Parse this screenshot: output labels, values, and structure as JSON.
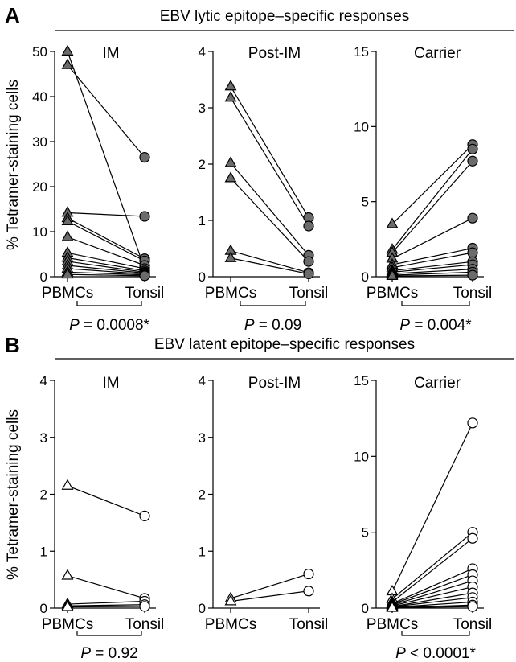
{
  "figure": {
    "panels": [
      {
        "letter": "A",
        "title": "EBV lytic epitope–specific responses",
        "ylabel": "% Tetramer-staining cells"
      },
      {
        "letter": "B",
        "title": "EBV latent epitope–specific responses",
        "ylabel": "% Tetramer-staining cells"
      }
    ]
  },
  "colors": {
    "lytic_fill": "#6b6b6b",
    "latent_fill": "#ffffff",
    "stroke": "#000000"
  },
  "chart_data": [
    {
      "type": "scatter",
      "title": "IM",
      "panel": "A",
      "categories": [
        "PBMCs",
        "Tonsil"
      ],
      "ylim": [
        0,
        50
      ],
      "yticks": [
        0,
        10,
        20,
        30,
        40,
        50
      ],
      "marker_filled": true,
      "p_prefix": "P",
      "p_value": " = 0.0008*",
      "pairs": [
        [
          50,
          1.8
        ],
        [
          47,
          26.5
        ],
        [
          14.2,
          13.4
        ],
        [
          13,
          4
        ],
        [
          12.3,
          3.5
        ],
        [
          8.8,
          2.5
        ],
        [
          5.3,
          1.8
        ],
        [
          4.2,
          1.3
        ],
        [
          3.4,
          1
        ],
        [
          2.5,
          0.8
        ],
        [
          1.8,
          0.6
        ],
        [
          1,
          0.4
        ],
        [
          0.5,
          0.2
        ]
      ]
    },
    {
      "type": "scatter",
      "title": "Post-IM",
      "panel": "A",
      "categories": [
        "PBMCs",
        "Tonsil"
      ],
      "ylim": [
        0,
        4
      ],
      "yticks": [
        0,
        1,
        2,
        3,
        4
      ],
      "marker_filled": true,
      "p_prefix": "P",
      "p_value": " = 0.09",
      "pairs": [
        [
          3.38,
          1.05
        ],
        [
          3.18,
          0.9
        ],
        [
          2.02,
          0.38
        ],
        [
          1.75,
          0.27
        ],
        [
          0.46,
          0.07
        ],
        [
          0.33,
          0.05
        ]
      ]
    },
    {
      "type": "scatter",
      "title": "Carrier",
      "panel": "A",
      "categories": [
        "PBMCs",
        "Tonsil"
      ],
      "ylim": [
        0,
        15
      ],
      "yticks": [
        0,
        5,
        10,
        15
      ],
      "marker_filled": true,
      "p_prefix": "P",
      "p_value": " = 0.004*",
      "pairs": [
        [
          3.5,
          8.8
        ],
        [
          1.8,
          8.5
        ],
        [
          1.6,
          7.7
        ],
        [
          1.2,
          3.9
        ],
        [
          0.8,
          1.9
        ],
        [
          0.6,
          1.6
        ],
        [
          0.4,
          1.0
        ],
        [
          0.3,
          0.8
        ],
        [
          0.2,
          0.5
        ],
        [
          0.1,
          0.3
        ],
        [
          0.05,
          0.1
        ]
      ]
    },
    {
      "type": "scatter",
      "title": "IM",
      "panel": "B",
      "categories": [
        "PBMCs",
        "Tonsil"
      ],
      "ylim": [
        0,
        4
      ],
      "yticks": [
        0,
        1,
        2,
        3,
        4
      ],
      "marker_filled": false,
      "p_prefix": "P",
      "p_value": " = 0.92",
      "pairs": [
        [
          2.15,
          1.62
        ],
        [
          0.57,
          0.17
        ],
        [
          0.07,
          0.12
        ],
        [
          0.04,
          0.06
        ],
        [
          0.02,
          0.03
        ]
      ]
    },
    {
      "type": "scatter",
      "title": "Post-IM",
      "panel": "B",
      "categories": [
        "PBMCs",
        "Tonsil"
      ],
      "ylim": [
        0,
        4
      ],
      "yticks": [
        0,
        1,
        2,
        3,
        4
      ],
      "marker_filled": false,
      "p_prefix": "",
      "p_value": "",
      "pairs": [
        [
          0.17,
          0.6
        ],
        [
          0.12,
          0.3
        ]
      ]
    },
    {
      "type": "scatter",
      "title": "Carrier",
      "panel": "B",
      "categories": [
        "PBMCs",
        "Tonsil"
      ],
      "ylim": [
        0,
        15
      ],
      "yticks": [
        0,
        5,
        10,
        15
      ],
      "marker_filled": false,
      "p_prefix": "P",
      "p_value": " < 0.0001*",
      "pairs": [
        [
          1.1,
          12.2
        ],
        [
          0.6,
          5.0
        ],
        [
          0.4,
          4.6
        ],
        [
          0.3,
          2.6
        ],
        [
          0.25,
          2.2
        ],
        [
          0.2,
          1.8
        ],
        [
          0.15,
          1.4
        ],
        [
          0.1,
          1.0
        ],
        [
          0.08,
          0.7
        ],
        [
          0.05,
          0.4
        ],
        [
          0.03,
          0.2
        ],
        [
          0.02,
          0.1
        ]
      ]
    }
  ]
}
